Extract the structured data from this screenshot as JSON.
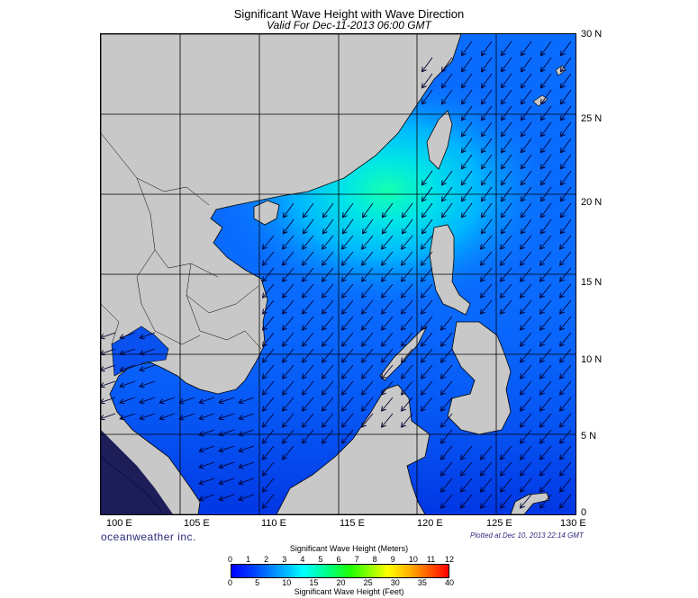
{
  "header": {
    "title": "Significant Wave Height with Wave Direction",
    "subtitle": "Valid For Dec-11-2013 06:00 GMT"
  },
  "map": {
    "lat_labels": [
      "30 N",
      "25 N",
      "20 N",
      "15 N",
      "10 N",
      "5 N",
      "0"
    ],
    "lon_labels": [
      "100 E",
      "105 E",
      "110 E",
      "115 E",
      "120 E",
      "125 E",
      "130 E"
    ],
    "ocean_color": "#0a6cff",
    "land_color": "#c8c8c8"
  },
  "footer": {
    "brand": "oceanweather inc.",
    "plotted": "Plotted at Dec 10, 2013 22:14 GMT"
  },
  "colorbar": {
    "title_top": "Significant Wave Height (Meters)",
    "meters_ticks": [
      "0",
      "1",
      "2",
      "3",
      "4",
      "5",
      "6",
      "7",
      "8",
      "9",
      "10",
      "11",
      "12"
    ],
    "feet_ticks": [
      "0",
      "5",
      "10",
      "15",
      "20",
      "25",
      "30",
      "35",
      "40"
    ],
    "title_bottom": "Significant Wave Height (Feet)"
  }
}
